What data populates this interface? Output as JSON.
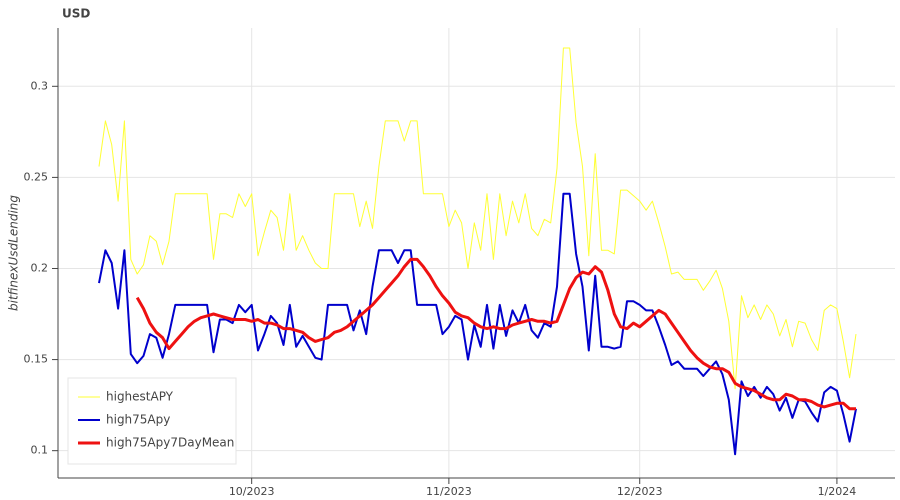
{
  "chart_data": {
    "type": "line",
    "title": "USD",
    "y_label": "bitfinexUsdLending",
    "categories": [
      null,
      null,
      null,
      null,
      null,
      null,
      null,
      null,
      null,
      null,
      null,
      null,
      null,
      null,
      null,
      null,
      null,
      null,
      null,
      null,
      null,
      null,
      null,
      null,
      "10/2023",
      null,
      null,
      null,
      null,
      null,
      null,
      null,
      null,
      null,
      null,
      null,
      null,
      null,
      null,
      null,
      null,
      null,
      null,
      null,
      null,
      null,
      null,
      null,
      null,
      null,
      null,
      null,
      null,
      null,
      null,
      "11/2023",
      null,
      null,
      null,
      null,
      null,
      null,
      null,
      null,
      null,
      null,
      null,
      null,
      null,
      null,
      null,
      null,
      null,
      null,
      null,
      null,
      null,
      null,
      null,
      null,
      null,
      null,
      null,
      null,
      null,
      "12/2023",
      null,
      null,
      null,
      null,
      null,
      null,
      null,
      null,
      null,
      null,
      null,
      null,
      null,
      null,
      null,
      null,
      null,
      null,
      null,
      null,
      null,
      null,
      null,
      null,
      null,
      null,
      null,
      null,
      null,
      null,
      "1/2024",
      null,
      null,
      null
    ],
    "series": [
      {
        "name": "highestAPY",
        "color": "#ffff33",
        "width": 1,
        "values": [
          0.256,
          0.281,
          0.268,
          0.237,
          0.281,
          0.205,
          0.197,
          0.202,
          0.218,
          0.215,
          0.202,
          0.215,
          0.241,
          0.241,
          0.241,
          0.241,
          0.241,
          0.241,
          0.205,
          0.23,
          0.23,
          0.228,
          0.241,
          0.234,
          0.241,
          0.207,
          0.22,
          0.232,
          0.228,
          0.21,
          0.241,
          0.21,
          0.218,
          0.21,
          0.203,
          0.2,
          0.2,
          0.241,
          0.241,
          0.241,
          0.241,
          0.223,
          0.237,
          0.222,
          0.256,
          0.281,
          0.281,
          0.281,
          0.27,
          0.281,
          0.281,
          0.241,
          0.241,
          0.241,
          0.241,
          0.223,
          0.232,
          0.225,
          0.2,
          0.225,
          0.21,
          0.241,
          0.205,
          0.241,
          0.218,
          0.237,
          0.225,
          0.241,
          0.222,
          0.218,
          0.227,
          0.225,
          0.255,
          0.321,
          0.321,
          0.28,
          0.256,
          0.207,
          0.263,
          0.21,
          0.21,
          0.208,
          0.243,
          0.243,
          0.24,
          0.237,
          0.232,
          0.237,
          0.225,
          0.212,
          0.197,
          0.198,
          0.194,
          0.194,
          0.194,
          0.188,
          0.193,
          0.199,
          0.189,
          0.171,
          0.134,
          0.185,
          0.173,
          0.18,
          0.172,
          0.18,
          0.175,
          0.163,
          0.172,
          0.157,
          0.171,
          0.17,
          0.161,
          0.155,
          0.177,
          0.18,
          0.178,
          0.16,
          0.14,
          0.164
        ]
      },
      {
        "name": "high75Apy",
        "color": "#0000cc",
        "width": 2,
        "values": [
          0.192,
          0.21,
          0.203,
          0.178,
          0.21,
          0.153,
          0.148,
          0.152,
          0.164,
          0.162,
          0.151,
          0.164,
          0.18,
          0.18,
          0.18,
          0.18,
          0.18,
          0.18,
          0.154,
          0.172,
          0.172,
          0.17,
          0.18,
          0.176,
          0.18,
          0.155,
          0.164,
          0.174,
          0.17,
          0.158,
          0.18,
          0.157,
          0.163,
          0.157,
          0.151,
          0.15,
          0.18,
          0.18,
          0.18,
          0.18,
          0.166,
          0.177,
          0.164,
          0.19,
          0.21,
          0.21,
          0.21,
          0.203,
          0.21,
          0.21,
          0.18,
          0.18,
          0.18,
          0.18,
          0.164,
          0.168,
          0.174,
          0.172,
          0.15,
          0.169,
          0.157,
          0.18,
          0.156,
          0.18,
          0.163,
          0.177,
          0.17,
          0.18,
          0.166,
          0.162,
          0.17,
          0.168,
          0.19,
          0.241,
          0.241,
          0.208,
          0.19,
          0.155,
          0.196,
          0.157,
          0.157,
          0.156,
          0.157,
          0.182,
          0.182,
          0.18,
          0.177,
          0.177,
          0.168,
          0.158,
          0.147,
          0.149,
          0.145,
          0.145,
          0.145,
          0.141,
          0.145,
          0.149,
          0.142,
          0.128,
          0.098,
          0.138,
          0.13,
          0.135,
          0.129,
          0.135,
          0.131,
          0.122,
          0.129,
          0.118,
          0.128,
          0.127,
          0.121,
          0.116,
          0.132,
          0.135,
          0.133,
          0.12,
          0.105,
          0.123
        ]
      },
      {
        "name": "high75Apy7DayMean",
        "color": "#ee1111",
        "width": 3,
        "values": [
          null,
          null,
          null,
          null,
          null,
          null,
          0.184,
          0.178,
          0.17,
          0.165,
          0.162,
          0.156,
          0.16,
          0.164,
          0.168,
          0.171,
          0.173,
          0.174,
          0.175,
          0.174,
          0.173,
          0.172,
          0.172,
          0.172,
          0.171,
          0.172,
          0.17,
          0.17,
          0.169,
          0.167,
          0.167,
          0.166,
          0.165,
          0.162,
          0.16,
          0.161,
          0.162,
          0.165,
          0.166,
          0.168,
          0.171,
          0.174,
          0.177,
          0.18,
          0.184,
          0.188,
          0.192,
          0.196,
          0.201,
          0.205,
          0.205,
          0.201,
          0.196,
          0.19,
          0.185,
          0.181,
          0.176,
          0.174,
          0.173,
          0.17,
          0.168,
          0.167,
          0.168,
          0.167,
          0.167,
          0.169,
          0.17,
          0.171,
          0.172,
          0.171,
          0.171,
          0.17,
          0.171,
          0.18,
          0.189,
          0.195,
          0.198,
          0.197,
          0.201,
          0.198,
          0.188,
          0.175,
          0.168,
          0.167,
          0.17,
          0.168,
          0.171,
          0.174,
          0.177,
          0.175,
          0.17,
          0.165,
          0.16,
          0.155,
          0.151,
          0.148,
          0.146,
          0.145,
          0.145,
          0.143,
          0.137,
          0.135,
          0.134,
          0.133,
          0.131,
          0.129,
          0.128,
          0.128,
          0.131,
          0.13,
          0.128,
          0.128,
          0.127,
          0.125,
          0.124,
          0.125,
          0.126,
          0.126,
          0.123,
          0.123
        ]
      }
    ],
    "ylim": [
      0.085,
      0.332
    ],
    "yticks": [
      0.1,
      0.15,
      0.2,
      0.25,
      0.3
    ],
    "grid": true,
    "legend": "bottom-left"
  }
}
